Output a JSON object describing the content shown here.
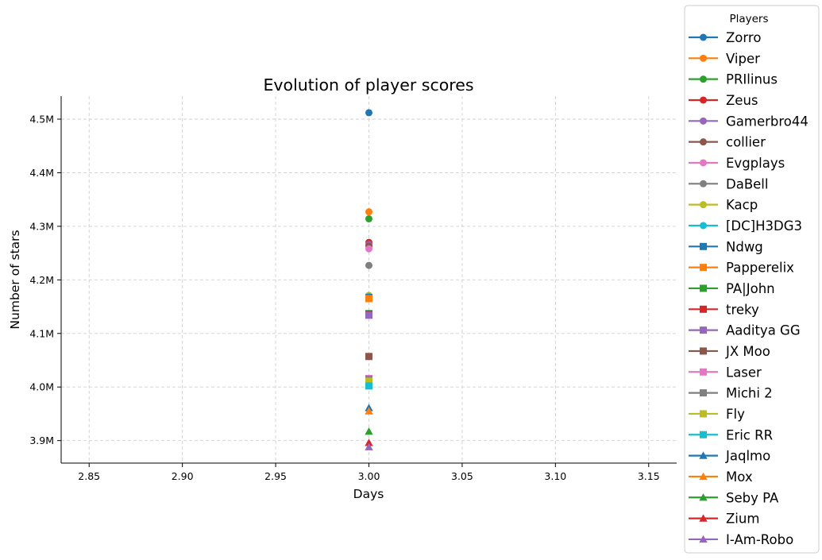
{
  "chart_data": {
    "type": "scatter",
    "title": "Evolution of player scores",
    "xlabel": "Days",
    "ylabel": "Number of stars",
    "xlim": [
      2.835,
      3.165
    ],
    "ylim": [
      3858000,
      4543000
    ],
    "x_ticks": [
      2.85,
      2.9,
      2.95,
      3.0,
      3.05,
      3.1,
      3.15
    ],
    "x_tick_labels": [
      "2.85",
      "2.90",
      "2.95",
      "3.00",
      "3.05",
      "3.10",
      "3.15"
    ],
    "y_ticks": [
      3900000,
      4000000,
      4100000,
      4200000,
      4300000,
      4400000,
      4500000
    ],
    "y_tick_labels": [
      "3.9M",
      "4.0M",
      "4.1M",
      "4.2M",
      "4.3M",
      "4.4M",
      "4.5M"
    ],
    "grid": true,
    "legend": {
      "title": "Players",
      "placement": "outside-right"
    },
    "series": [
      {
        "name": "Zorro",
        "color": "#1f77b4",
        "marker": "circle",
        "x": [
          3.0
        ],
        "y": [
          4512000
        ]
      },
      {
        "name": "Viper",
        "color": "#ff7f0e",
        "marker": "circle",
        "x": [
          3.0
        ],
        "y": [
          4327000
        ]
      },
      {
        "name": "PRIlinus",
        "color": "#2ca02c",
        "marker": "circle",
        "x": [
          3.0
        ],
        "y": [
          4314000
        ]
      },
      {
        "name": "Zeus",
        "color": "#d62728",
        "marker": "circle",
        "x": [
          3.0
        ],
        "y": [
          4270000
        ]
      },
      {
        "name": "Gamerbro44",
        "color": "#9467bd",
        "marker": "circle",
        "x": [
          3.0
        ],
        "y": [
          4266000
        ]
      },
      {
        "name": "collier",
        "color": "#8c564b",
        "marker": "circle",
        "x": [
          3.0
        ],
        "y": [
          4263000
        ]
      },
      {
        "name": "Evgplays",
        "color": "#e377c2",
        "marker": "circle",
        "x": [
          3.0
        ],
        "y": [
          4258000
        ]
      },
      {
        "name": "DaBell",
        "color": "#7f7f7f",
        "marker": "circle",
        "x": [
          3.0
        ],
        "y": [
          4227000
        ]
      },
      {
        "name": "Kacp",
        "color": "#bcbd22",
        "marker": "circle",
        "x": [
          3.0
        ],
        "y": [
          4171000
        ]
      },
      {
        "name": "[DC]H3DG3",
        "color": "#17becf",
        "marker": "circle",
        "x": [
          3.0
        ],
        "y": [
          4169000
        ]
      },
      {
        "name": "Ndwg",
        "color": "#1f77b4",
        "marker": "square",
        "x": [
          3.0
        ],
        "y": [
          4167000
        ]
      },
      {
        "name": "Papperelix",
        "color": "#ff7f0e",
        "marker": "square",
        "x": [
          3.0
        ],
        "y": [
          4165000
        ]
      },
      {
        "name": "PA|John",
        "color": "#2ca02c",
        "marker": "square",
        "x": [
          3.0
        ],
        "y": [
          4137000
        ]
      },
      {
        "name": "treky",
        "color": "#d62728",
        "marker": "square",
        "x": [
          3.0
        ],
        "y": [
          4136000
        ]
      },
      {
        "name": "Aaditya GG",
        "color": "#9467bd",
        "marker": "square",
        "x": [
          3.0
        ],
        "y": [
          4134000
        ]
      },
      {
        "name": "JX Moo",
        "color": "#8c564b",
        "marker": "square",
        "x": [
          3.0
        ],
        "y": [
          4057000
        ]
      },
      {
        "name": "Laser",
        "color": "#e377c2",
        "marker": "square",
        "x": [
          3.0
        ],
        "y": [
          4016000
        ]
      },
      {
        "name": "Michi 2",
        "color": "#7f7f7f",
        "marker": "square",
        "x": [
          3.0
        ],
        "y": [
          4014000
        ]
      },
      {
        "name": "Fly",
        "color": "#bcbd22",
        "marker": "square",
        "x": [
          3.0
        ],
        "y": [
          4011000
        ]
      },
      {
        "name": "Eric RR",
        "color": "#17becf",
        "marker": "square",
        "x": [
          3.0
        ],
        "y": [
          4002000
        ]
      },
      {
        "name": "Jaqlmo",
        "color": "#1f77b4",
        "marker": "triangle",
        "x": [
          3.0
        ],
        "y": [
          3961000
        ]
      },
      {
        "name": "Mox",
        "color": "#ff7f0e",
        "marker": "triangle",
        "x": [
          3.0
        ],
        "y": [
          3955000
        ]
      },
      {
        "name": "Seby PA",
        "color": "#2ca02c",
        "marker": "triangle",
        "x": [
          3.0
        ],
        "y": [
          3917000
        ]
      },
      {
        "name": "Zium",
        "color": "#d62728",
        "marker": "triangle",
        "x": [
          3.0
        ],
        "y": [
          3896000
        ]
      },
      {
        "name": "I-Am-Robo",
        "color": "#9467bd",
        "marker": "triangle",
        "x": [
          3.0
        ],
        "y": [
          3888000
        ]
      }
    ]
  }
}
